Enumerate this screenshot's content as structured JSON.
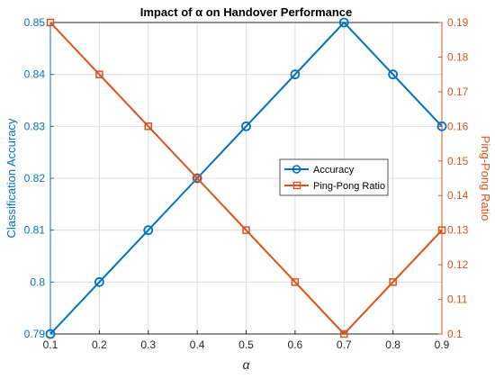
{
  "chart_data": {
    "type": "line",
    "title": "Impact of α on Handover Performance",
    "xlabel": "α",
    "ylabel_left": "Classification Accuracy",
    "ylabel_right": "Ping-Pong Ratio",
    "x": [
      0.1,
      0.2,
      0.3,
      0.4,
      0.5,
      0.6,
      0.7,
      0.8,
      0.9
    ],
    "xlim": [
      0.1,
      0.9
    ],
    "xticks": [
      "0.1",
      "0.2",
      "0.3",
      "0.4",
      "0.5",
      "0.6",
      "0.7",
      "0.8",
      "0.9"
    ],
    "ylim_left": [
      0.79,
      0.85
    ],
    "yticks_left": [
      "0.79",
      "0.8",
      "0.81",
      "0.82",
      "0.83",
      "0.84",
      "0.85"
    ],
    "ylim_right": [
      0.1,
      0.19
    ],
    "yticks_right": [
      "0.1",
      "0.11",
      "0.12",
      "0.13",
      "0.14",
      "0.15",
      "0.16",
      "0.17",
      "0.18",
      "0.19"
    ],
    "grid": true,
    "legend_position": "right",
    "series": [
      {
        "name": "Accuracy",
        "axis": "left",
        "color": "#0072BD",
        "marker": "circle",
        "values": [
          0.79,
          0.8,
          0.81,
          0.82,
          0.83,
          0.84,
          0.85,
          0.84,
          0.83
        ]
      },
      {
        "name": "Ping-Pong Ratio",
        "axis": "right",
        "color": "#D95319",
        "marker": "square",
        "values": [
          0.19,
          0.175,
          0.16,
          0.145,
          0.13,
          0.115,
          0.1,
          0.115,
          0.13
        ]
      }
    ]
  }
}
